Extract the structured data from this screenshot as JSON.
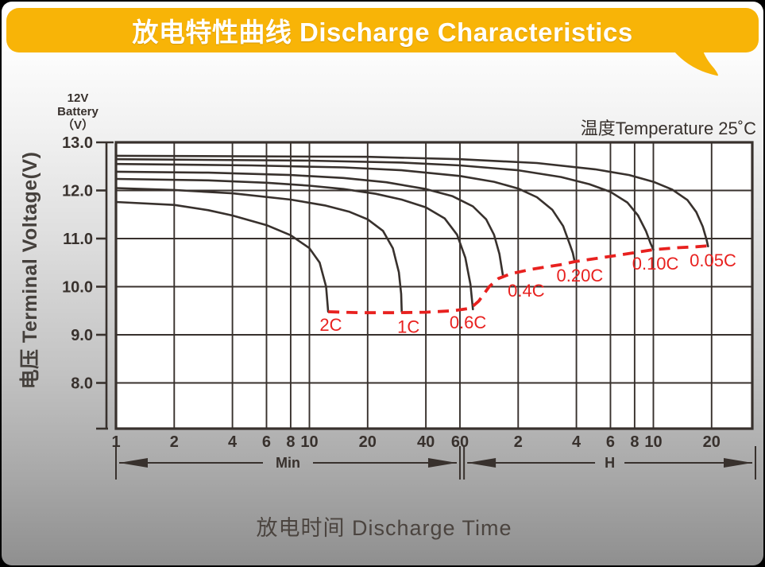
{
  "header": {
    "title": "放电特性曲线 Discharge Characteristics",
    "banner_color": "#F8B407",
    "text_color": "#FFFFFF"
  },
  "footer": {
    "x_title": "放电时间 Discharge Time"
  },
  "chart_data": {
    "type": "line",
    "grid": true,
    "plot_background": "#FFFFFF",
    "ink_color": "#38312D",
    "cutoff_color": "#E8211F",
    "annotation_temperature": "温度Temperature 25˚C",
    "corner_label_lines": [
      "12V",
      "Battery",
      "（V）"
    ],
    "y_axis": {
      "label": "电压 Terminal Voltage(V)",
      "ticks": [
        13.0,
        12.0,
        11.0,
        10.0,
        9.0,
        8.0
      ],
      "tick_format_decimals": 1,
      "range": [
        7.1,
        13.0
      ],
      "unit": "V"
    },
    "x_axis": {
      "label": "放电时间 Discharge Time",
      "scale": "log",
      "range_minutes": [
        1,
        1950
      ],
      "unit_groups": [
        {
          "label": "Min",
          "span_minutes": [
            1,
            60
          ],
          "ticks": [
            {
              "t": 1,
              "text": "1"
            },
            {
              "t": 2,
              "text": "2"
            },
            {
              "t": 4,
              "text": "4"
            },
            {
              "t": 6,
              "text": "6"
            },
            {
              "t": 8,
              "text": "8"
            },
            {
              "t": 10,
              "text": "10"
            },
            {
              "t": 20,
              "text": "20"
            },
            {
              "t": 40,
              "text": "40"
            },
            {
              "t": 60,
              "text": "60"
            }
          ]
        },
        {
          "label": "H",
          "span_minutes": [
            63,
            1950
          ],
          "ticks": [
            {
              "t": 120,
              "text": "2"
            },
            {
              "t": 240,
              "text": "4"
            },
            {
              "t": 360,
              "text": "6"
            },
            {
              "t": 480,
              "text": "8"
            },
            {
              "t": 600,
              "text": "10"
            },
            {
              "t": 1200,
              "text": "20"
            }
          ]
        }
      ]
    },
    "series": [
      {
        "name": "2C",
        "label": "2C",
        "label_at": [
          12.9,
          9.2
        ],
        "points_min_v": [
          [
            1,
            11.76
          ],
          [
            2,
            11.7
          ],
          [
            3,
            11.59
          ],
          [
            4,
            11.48
          ],
          [
            6,
            11.28
          ],
          [
            8,
            11.07
          ],
          [
            10,
            10.8
          ],
          [
            11.3,
            10.5
          ],
          [
            12.2,
            10.0
          ],
          [
            12.5,
            9.48
          ]
        ]
      },
      {
        "name": "1C",
        "label": "1C",
        "label_at": [
          32.5,
          9.16
        ],
        "points_min_v": [
          [
            1,
            12.05
          ],
          [
            2,
            12.01
          ],
          [
            4,
            11.94
          ],
          [
            8,
            11.81
          ],
          [
            12,
            11.69
          ],
          [
            16,
            11.56
          ],
          [
            20,
            11.4
          ],
          [
            24,
            11.16
          ],
          [
            27,
            10.8
          ],
          [
            29,
            10.3
          ],
          [
            29.8,
            9.85
          ],
          [
            30,
            9.48
          ]
        ]
      },
      {
        "name": "0.6C",
        "label": "0.6C",
        "label_at": [
          66,
          9.25
        ],
        "points_min_v": [
          [
            1,
            12.24
          ],
          [
            3,
            12.21
          ],
          [
            6,
            12.16
          ],
          [
            10,
            12.1
          ],
          [
            15,
            12.03
          ],
          [
            22,
            11.93
          ],
          [
            30,
            11.81
          ],
          [
            40,
            11.65
          ],
          [
            50,
            11.42
          ],
          [
            58,
            11.08
          ],
          [
            64,
            10.6
          ],
          [
            68,
            10.05
          ],
          [
            70,
            9.53
          ]
        ]
      },
      {
        "name": "0.4C",
        "label": "0.4C",
        "label_at": [
          132,
          9.91
        ],
        "points_min_v": [
          [
            1,
            12.39
          ],
          [
            3,
            12.37
          ],
          [
            8,
            12.32
          ],
          [
            15,
            12.26
          ],
          [
            25,
            12.17
          ],
          [
            40,
            12.03
          ],
          [
            55,
            11.88
          ],
          [
            70,
            11.67
          ],
          [
            82,
            11.4
          ],
          [
            90,
            11.08
          ],
          [
            96,
            10.68
          ],
          [
            100,
            10.24
          ]
        ]
      },
      {
        "name": "0.20C",
        "label": "0.20C",
        "label_at": [
          250,
          10.22
        ],
        "points_min_v": [
          [
            1,
            12.55
          ],
          [
            5,
            12.52
          ],
          [
            15,
            12.48
          ],
          [
            30,
            12.42
          ],
          [
            60,
            12.3
          ],
          [
            90,
            12.18
          ],
          [
            120,
            12.04
          ],
          [
            150,
            11.86
          ],
          [
            180,
            11.6
          ],
          [
            205,
            11.26
          ],
          [
            222,
            10.88
          ],
          [
            230,
            10.7
          ],
          [
            235,
            10.52
          ]
        ]
      },
      {
        "name": "0.10C",
        "label": "0.10C",
        "label_at": [
          615,
          10.47
        ],
        "points_min_v": [
          [
            1,
            12.65
          ],
          [
            10,
            12.62
          ],
          [
            30,
            12.58
          ],
          [
            60,
            12.52
          ],
          [
            120,
            12.42
          ],
          [
            200,
            12.28
          ],
          [
            280,
            12.13
          ],
          [
            360,
            11.97
          ],
          [
            440,
            11.75
          ],
          [
            500,
            11.48
          ],
          [
            550,
            11.15
          ],
          [
            580,
            10.9
          ],
          [
            600,
            10.77
          ]
        ]
      },
      {
        "name": "0.05C",
        "label": "0.05C",
        "label_at": [
          1220,
          10.54
        ],
        "points_min_v": [
          [
            1,
            12.72
          ],
          [
            20,
            12.7
          ],
          [
            60,
            12.65
          ],
          [
            150,
            12.57
          ],
          [
            300,
            12.44
          ],
          [
            450,
            12.32
          ],
          [
            600,
            12.18
          ],
          [
            750,
            12.02
          ],
          [
            900,
            11.8
          ],
          [
            1000,
            11.55
          ],
          [
            1080,
            11.25
          ],
          [
            1130,
            10.98
          ],
          [
            1150,
            10.84
          ]
        ]
      }
    ],
    "cutoff_line": {
      "name": "discharge-cutoff-voltage",
      "style": "dashed",
      "points_min_v": [
        [
          12.5,
          9.48
        ],
        [
          18,
          9.46
        ],
        [
          28,
          9.46
        ],
        [
          40,
          9.47
        ],
        [
          55,
          9.5
        ],
        [
          68,
          9.55
        ],
        [
          75,
          9.7
        ],
        [
          85,
          10.0
        ],
        [
          95,
          10.17
        ],
        [
          110,
          10.27
        ],
        [
          140,
          10.36
        ],
        [
          200,
          10.46
        ],
        [
          235,
          10.52
        ],
        [
          320,
          10.6
        ],
        [
          450,
          10.69
        ],
        [
          600,
          10.77
        ],
        [
          800,
          10.81
        ],
        [
          1000,
          10.83
        ],
        [
          1150,
          10.85
        ]
      ]
    }
  }
}
